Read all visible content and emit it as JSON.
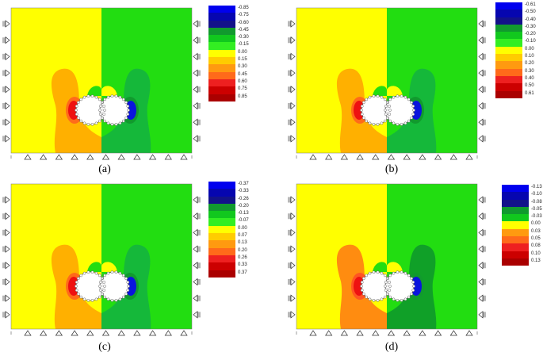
{
  "palette": {
    "yellow": "#ffff00",
    "green": "#22dd11",
    "orange": "#ffb000",
    "darkorange": "#ff8c10",
    "redorange": "#ff5522",
    "red": "#ee1111",
    "darkgreen": "#15b83a",
    "blue": "#0a14dd",
    "darkblue": "#1010a0"
  },
  "panels": [
    {
      "caption": "(a)",
      "legend": {
        "values": [
          "-0.85",
          "-0.75",
          "-0.60",
          "-0.45",
          "-0.30",
          "-0.15",
          "0.00",
          "0.15",
          "0.30",
          "0.45",
          "0.60",
          "0.75",
          "0.85"
        ],
        "colors": [
          "#0000ee",
          "#0606b0",
          "#13128a",
          "#119a2e",
          "#11c81e",
          "#33ee22",
          "#ffff00",
          "#ffcc00",
          "#ff9a10",
          "#ff6a1a",
          "#ee2020",
          "#cc0000",
          "#aa0000"
        ]
      }
    },
    {
      "caption": "(b)",
      "legend": {
        "values": [
          "-0.61",
          "-0.50",
          "-0.40",
          "-0.30",
          "-0.20",
          "-0.10",
          "0.00",
          "0.10",
          "0.20",
          "0.30",
          "0.40",
          "0.50",
          "0.61"
        ],
        "colors": [
          "#0000ee",
          "#0606b0",
          "#13128a",
          "#119a2e",
          "#11c81e",
          "#33ee22",
          "#ffff00",
          "#ffcc00",
          "#ff9a10",
          "#ff6a1a",
          "#ee2020",
          "#cc0000",
          "#aa0000"
        ]
      }
    },
    {
      "caption": "(c)",
      "legend": {
        "values": [
          "-0.37",
          "-0.33",
          "-0.26",
          "-0.20",
          "-0.13",
          "-0.07",
          "0.00",
          "0.07",
          "0.13",
          "0.20",
          "0.26",
          "0.33",
          "0.37"
        ],
        "colors": [
          "#0000ee",
          "#0606b0",
          "#13128a",
          "#119a2e",
          "#11c81e",
          "#33ee22",
          "#ffff00",
          "#ffcc00",
          "#ff9a10",
          "#ff6a1a",
          "#ee2020",
          "#cc0000",
          "#aa0000"
        ]
      }
    },
    {
      "caption": "(d)",
      "legend": {
        "values": [
          "-0.13",
          "-0.10",
          "-0.08",
          "-0.05",
          "-0.03",
          "0.00",
          "0.03",
          "0.05",
          "0.08",
          "0.10",
          "0.13"
        ],
        "colors": [
          "#0000ee",
          "#0606b0",
          "#13128a",
          "#119a2e",
          "#11c81e",
          "#ffff00",
          "#ff9a10",
          "#ff6a1a",
          "#ee2020",
          "#cc0000",
          "#aa0000"
        ]
      }
    }
  ]
}
